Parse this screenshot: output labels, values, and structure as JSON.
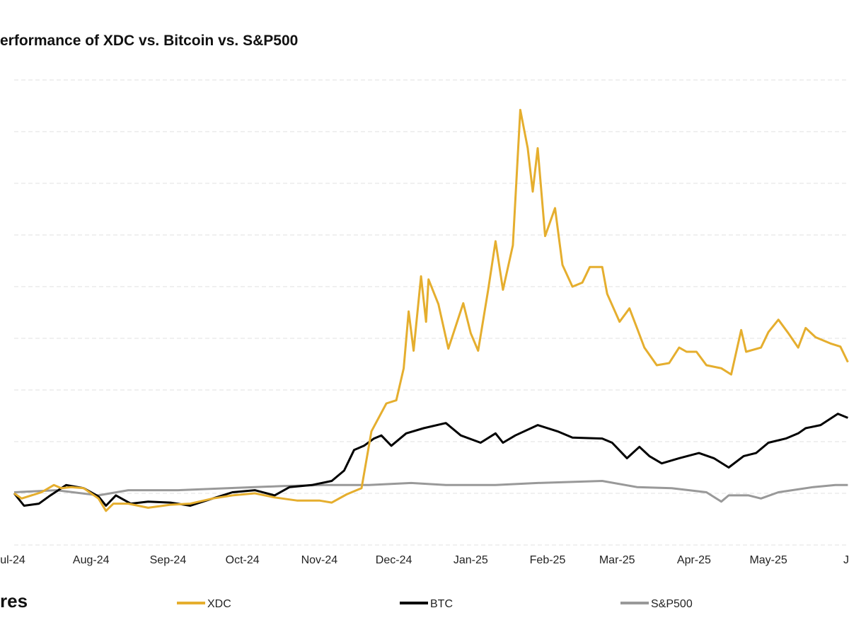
{
  "chart_data": {
    "type": "line",
    "title": "erformance of XDC vs. Bitcoin vs. S&P500",
    "xlabel": "",
    "ylabel": "",
    "x_ticks": [
      {
        "date": "2024-07-01",
        "label": "ul-24"
      },
      {
        "date": "2024-08-01",
        "label": "Aug-24"
      },
      {
        "date": "2024-09-01",
        "label": "Sep-24"
      },
      {
        "date": "2024-10-01",
        "label": "Oct-24"
      },
      {
        "date": "2024-11-01",
        "label": "Nov-24"
      },
      {
        "date": "2024-12-01",
        "label": "Dec-24"
      },
      {
        "date": "2025-01-01",
        "label": "Jan-25"
      },
      {
        "date": "2025-02-01",
        "label": "Feb-25"
      },
      {
        "date": "2025-03-01",
        "label": "Mar-25"
      },
      {
        "date": "2025-04-01",
        "label": "Apr-25"
      },
      {
        "date": "2025-05-01",
        "label": "May-25"
      },
      {
        "date": "2025-06-01",
        "label": "J"
      }
    ],
    "xlim": [
      "2024-07-01",
      "2025-06-02"
    ],
    "ylim": [
      -50,
      400
    ],
    "y_grid_step": 50,
    "grid": true,
    "legend_placement": "bottom",
    "series": [
      {
        "name": "XDC",
        "color": "#E5AE2E",
        "points": [
          [
            "2024-07-01",
            0
          ],
          [
            "2024-07-04",
            -5
          ],
          [
            "2024-07-08",
            -2
          ],
          [
            "2024-07-12",
            1
          ],
          [
            "2024-07-17",
            8
          ],
          [
            "2024-07-20",
            5
          ],
          [
            "2024-07-24",
            6
          ],
          [
            "2024-07-29",
            5
          ],
          [
            "2024-08-04",
            -5
          ],
          [
            "2024-08-07",
            -17
          ],
          [
            "2024-08-10",
            -10
          ],
          [
            "2024-08-16",
            -10
          ],
          [
            "2024-08-24",
            -14
          ],
          [
            "2024-09-02",
            -11
          ],
          [
            "2024-09-10",
            -10
          ],
          [
            "2024-09-19",
            -5
          ],
          [
            "2024-09-27",
            -2
          ],
          [
            "2024-10-06",
            0
          ],
          [
            "2024-10-14",
            -4
          ],
          [
            "2024-10-23",
            -7
          ],
          [
            "2024-11-01",
            -7
          ],
          [
            "2024-11-06",
            -9
          ],
          [
            "2024-11-12",
            -1
          ],
          [
            "2024-11-18",
            5
          ],
          [
            "2024-11-22",
            60
          ],
          [
            "2024-11-28",
            87
          ],
          [
            "2024-12-02",
            90
          ],
          [
            "2024-12-05",
            121
          ],
          [
            "2024-12-07",
            176
          ],
          [
            "2024-12-09",
            138
          ],
          [
            "2024-12-12",
            210
          ],
          [
            "2024-12-14",
            166
          ],
          [
            "2024-12-15",
            207
          ],
          [
            "2024-12-19",
            183
          ],
          [
            "2024-12-23",
            140
          ],
          [
            "2024-12-29",
            184
          ],
          [
            "2025-01-01",
            155
          ],
          [
            "2025-01-04",
            138
          ],
          [
            "2025-01-08",
            196
          ],
          [
            "2025-01-11",
            244
          ],
          [
            "2025-01-14",
            197
          ],
          [
            "2025-01-18",
            240
          ],
          [
            "2025-01-21",
            371
          ],
          [
            "2025-01-24",
            334
          ],
          [
            "2025-01-26",
            292
          ],
          [
            "2025-01-28",
            334
          ],
          [
            "2025-01-31",
            249
          ],
          [
            "2025-02-04",
            276
          ],
          [
            "2025-02-07",
            221
          ],
          [
            "2025-02-11",
            200
          ],
          [
            "2025-02-15",
            204
          ],
          [
            "2025-02-18",
            219
          ],
          [
            "2025-02-23",
            219
          ],
          [
            "2025-02-25",
            193
          ],
          [
            "2025-03-02",
            166
          ],
          [
            "2025-03-06",
            179
          ],
          [
            "2025-03-09",
            160
          ],
          [
            "2025-03-12",
            141
          ],
          [
            "2025-03-17",
            124
          ],
          [
            "2025-03-22",
            126
          ],
          [
            "2025-03-26",
            141
          ],
          [
            "2025-03-29",
            137
          ],
          [
            "2025-04-02",
            137
          ],
          [
            "2025-04-06",
            124
          ],
          [
            "2025-04-12",
            121
          ],
          [
            "2025-04-16",
            115
          ],
          [
            "2025-04-20",
            158
          ],
          [
            "2025-04-22",
            137
          ],
          [
            "2025-04-28",
            141
          ],
          [
            "2025-05-01",
            156
          ],
          [
            "2025-05-05",
            168
          ],
          [
            "2025-05-09",
            155
          ],
          [
            "2025-05-13",
            141
          ],
          [
            "2025-05-16",
            160
          ],
          [
            "2025-05-20",
            151
          ],
          [
            "2025-05-26",
            145
          ],
          [
            "2025-05-30",
            142
          ],
          [
            "2025-06-02",
            127
          ]
        ]
      },
      {
        "name": "BTC",
        "color": "#000000",
        "points": [
          [
            "2024-07-01",
            0
          ],
          [
            "2024-07-05",
            -12
          ],
          [
            "2024-07-11",
            -10
          ],
          [
            "2024-07-15",
            -3
          ],
          [
            "2024-07-22",
            8
          ],
          [
            "2024-07-29",
            5
          ],
          [
            "2024-08-04",
            -3
          ],
          [
            "2024-08-07",
            -12
          ],
          [
            "2024-08-11",
            -2
          ],
          [
            "2024-08-17",
            -10
          ],
          [
            "2024-08-24",
            -8
          ],
          [
            "2024-09-02",
            -9
          ],
          [
            "2024-09-10",
            -12
          ],
          [
            "2024-09-19",
            -5
          ],
          [
            "2024-09-27",
            1
          ],
          [
            "2024-10-06",
            3
          ],
          [
            "2024-10-14",
            -2
          ],
          [
            "2024-10-20",
            6
          ],
          [
            "2024-10-29",
            8
          ],
          [
            "2024-11-06",
            12
          ],
          [
            "2024-11-11",
            22
          ],
          [
            "2024-11-15",
            42
          ],
          [
            "2024-11-19",
            46
          ],
          [
            "2024-11-23",
            53
          ],
          [
            "2024-11-26",
            56
          ],
          [
            "2024-11-30",
            46
          ],
          [
            "2024-12-06",
            58
          ],
          [
            "2024-12-13",
            63
          ],
          [
            "2024-12-22",
            68
          ],
          [
            "2024-12-28",
            56
          ],
          [
            "2025-01-05",
            49
          ],
          [
            "2025-01-11",
            58
          ],
          [
            "2025-01-14",
            49
          ],
          [
            "2025-01-19",
            56
          ],
          [
            "2025-01-28",
            66
          ],
          [
            "2025-02-05",
            60
          ],
          [
            "2025-02-11",
            54
          ],
          [
            "2025-02-23",
            53
          ],
          [
            "2025-02-27",
            49
          ],
          [
            "2025-03-05",
            34
          ],
          [
            "2025-03-10",
            45
          ],
          [
            "2025-03-14",
            36
          ],
          [
            "2025-03-19",
            29
          ],
          [
            "2025-03-26",
            34
          ],
          [
            "2025-04-03",
            39
          ],
          [
            "2025-04-09",
            34
          ],
          [
            "2025-04-15",
            25
          ],
          [
            "2025-04-21",
            36
          ],
          [
            "2025-04-26",
            39
          ],
          [
            "2025-05-01",
            49
          ],
          [
            "2025-05-08",
            53
          ],
          [
            "2025-05-13",
            58
          ],
          [
            "2025-05-16",
            63
          ],
          [
            "2025-05-22",
            66
          ],
          [
            "2025-05-29",
            77
          ],
          [
            "2025-06-02",
            73
          ]
        ]
      },
      {
        "name": "S&P500",
        "color": "#999999",
        "points": [
          [
            "2024-07-01",
            1
          ],
          [
            "2024-07-18",
            3
          ],
          [
            "2024-08-04",
            -2
          ],
          [
            "2024-08-16",
            3
          ],
          [
            "2024-09-05",
            3
          ],
          [
            "2024-09-25",
            5
          ],
          [
            "2024-10-17",
            7
          ],
          [
            "2024-11-03",
            8
          ],
          [
            "2024-11-21",
            8
          ],
          [
            "2024-12-08",
            10
          ],
          [
            "2024-12-22",
            8
          ],
          [
            "2025-01-11",
            8
          ],
          [
            "2025-01-28",
            10
          ],
          [
            "2025-02-23",
            12
          ],
          [
            "2025-03-09",
            6
          ],
          [
            "2025-03-23",
            5
          ],
          [
            "2025-04-06",
            1
          ],
          [
            "2025-04-12",
            -8
          ],
          [
            "2025-04-15",
            -2
          ],
          [
            "2025-04-23",
            -2
          ],
          [
            "2025-04-28",
            -5
          ],
          [
            "2025-05-05",
            1
          ],
          [
            "2025-05-19",
            6
          ],
          [
            "2025-05-28",
            8
          ],
          [
            "2025-06-02",
            8
          ]
        ]
      }
    ]
  },
  "logo_text": "res"
}
